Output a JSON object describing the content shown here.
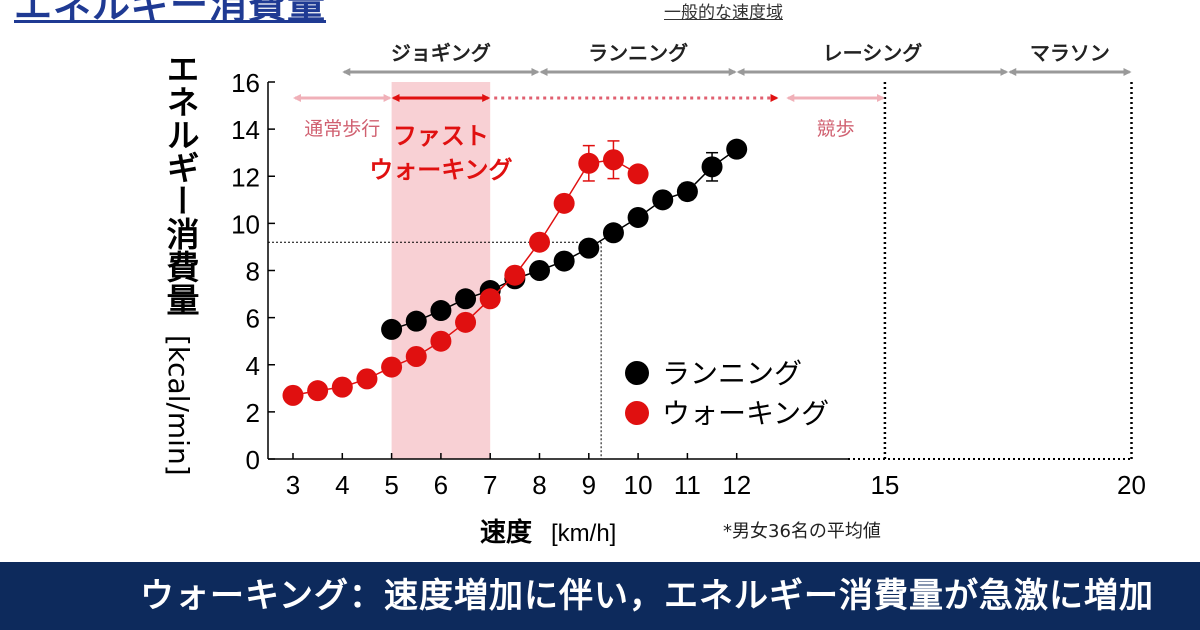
{
  "page_title": "エネルギー消費量",
  "range_label": "一般的な速度域",
  "footer": "ウォーキング：速度増加に伴い，エネルギー消費量が急激に増加",
  "colors": {
    "running": "#000000",
    "walking": "#e01010",
    "band": "#f8d0d4",
    "gray_arrow": "#999999",
    "pink_arrow": "#f0b0b8",
    "footer_bg": "#0d2a5c"
  },
  "chart_data": {
    "type": "scatter",
    "title": "エネルギー消費量",
    "ylabel_main": "エネルギー消費量",
    "ylabel_unit": "[kcal/min]",
    "xlabel_main": "速度",
    "xlabel_unit": "[km/h]",
    "ylim": [
      0,
      16
    ],
    "yticks": [
      "0",
      "2",
      "4",
      "6",
      "8",
      "10",
      "12",
      "14",
      "16"
    ],
    "xticks": [
      "3",
      "4",
      "5",
      "6",
      "7",
      "8",
      "9",
      "10",
      "11",
      "12",
      "15",
      "20"
    ],
    "note": "*男女36名の平均値",
    "legend_position": "center-right",
    "series": [
      {
        "name": "ランニング",
        "color": "#000000",
        "x": [
          5,
          5.5,
          6,
          6.5,
          7,
          7.5,
          8,
          8.5,
          9,
          9.5,
          10,
          10.5,
          11,
          11.5,
          12
        ],
        "y": [
          5.5,
          5.85,
          6.3,
          6.8,
          7.15,
          7.65,
          8.0,
          8.4,
          8.95,
          9.6,
          10.25,
          11.0,
          11.35,
          12.4,
          13.15
        ],
        "err": [
          0,
          0,
          0,
          0,
          0,
          0,
          0,
          0,
          0,
          0,
          0,
          0,
          0.35,
          0.6,
          0
        ]
      },
      {
        "name": "ウォーキング",
        "color": "#e01010",
        "x": [
          3,
          3.5,
          4,
          4.5,
          5,
          5.5,
          6,
          6.5,
          7,
          7.5,
          8,
          8.5,
          9,
          9.5,
          10
        ],
        "y": [
          2.7,
          2.9,
          3.05,
          3.4,
          3.9,
          4.35,
          5.0,
          5.8,
          6.8,
          7.8,
          9.2,
          10.85,
          12.55,
          12.7,
          12.1
        ],
        "err": [
          0,
          0,
          0,
          0,
          0,
          0,
          0,
          0,
          0,
          0,
          0,
          0,
          0.75,
          0.8,
          0
        ]
      }
    ],
    "reference_lines": [
      {
        "x": 9.25,
        "y": 9.2
      }
    ],
    "running_categories": [
      {
        "label": "ジョギング",
        "from": 4,
        "to": 8
      },
      {
        "label": "ランニング",
        "from": 8,
        "to": 12
      },
      {
        "label": "レーシング",
        "from": 12,
        "to": 17.5
      },
      {
        "label": "マラソン",
        "from": 17.5,
        "to": 20
      }
    ],
    "walking_categories": [
      {
        "label": "通常歩行",
        "from": 3,
        "to": 5
      },
      {
        "label": "ファスト\nウォーキング",
        "from": 5,
        "to": 7
      },
      {
        "label": "競歩",
        "from": 13,
        "to": 15
      }
    ],
    "dashed_verticals": [
      15,
      20
    ]
  }
}
